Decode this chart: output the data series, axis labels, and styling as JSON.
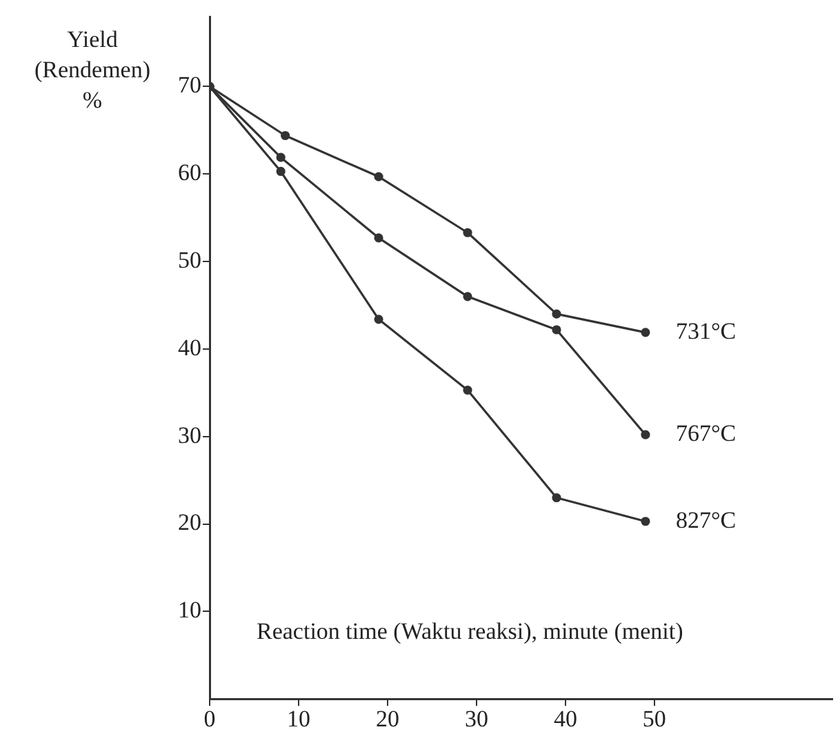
{
  "chart_data": {
    "type": "line",
    "xlabel": "Reaction time (Waktu reaksi), minute (menit)",
    "ylabel": "Yield (Rendemen) %",
    "xlim": [
      0,
      70
    ],
    "xticks": [
      0,
      10,
      20,
      30,
      40,
      50
    ],
    "ylim": [
      0,
      78
    ],
    "yticks": [
      10,
      20,
      30,
      40,
      50,
      60,
      70
    ],
    "grid": false,
    "legend": false,
    "marker": "circle",
    "line_style": "solid",
    "series": [
      {
        "name": "731°C",
        "color": "#333333",
        "x": [
          0,
          8.5,
          19,
          29,
          39,
          49
        ],
        "values": [
          70,
          64.4,
          59.7,
          53.3,
          44,
          41.9
        ]
      },
      {
        "name": "767°C",
        "color": "#333333",
        "x": [
          0,
          8,
          19,
          29,
          39,
          49
        ],
        "values": [
          70,
          61.9,
          52.7,
          46,
          42.2,
          30.2
        ]
      },
      {
        "name": "827°C",
        "color": "#333333",
        "x": [
          0,
          8,
          19,
          29,
          39,
          49
        ],
        "values": [
          70,
          60.3,
          43.4,
          35.3,
          23,
          20.3
        ]
      }
    ]
  }
}
